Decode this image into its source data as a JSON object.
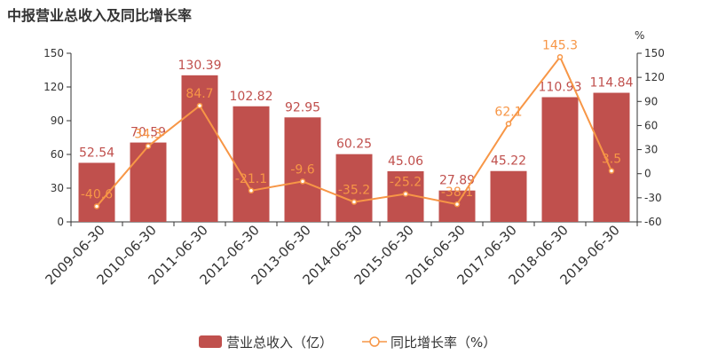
{
  "title": "中报营业总收入及同比增长率",
  "chart_data": {
    "type": "bar",
    "categories": [
      "2009-06-30",
      "2010-06-30",
      "2011-06-30",
      "2012-06-30",
      "2013-06-30",
      "2014-06-30",
      "2015-06-30",
      "2016-06-30",
      "2017-06-30",
      "2018-06-30",
      "2019-06-30"
    ],
    "series": [
      {
        "name": "营业总收入（亿）",
        "type": "bar",
        "axis": "left",
        "color": "#c0504d",
        "values": [
          52.54,
          70.59,
          130.39,
          102.82,
          92.95,
          60.25,
          45.06,
          27.89,
          45.22,
          110.93,
          114.84
        ]
      },
      {
        "name": "同比增长率（%）",
        "type": "line",
        "axis": "right",
        "color": "#f79646",
        "values": [
          -40.6,
          34.3,
          84.7,
          -21.1,
          -9.6,
          -35.2,
          -25.2,
          -38.1,
          62.1,
          145.3,
          3.5
        ]
      }
    ],
    "y_left": {
      "min": 0,
      "max": 150,
      "ticks": [
        "0",
        "30",
        "60",
        "90",
        "120",
        "150"
      ]
    },
    "y_right": {
      "min": -60,
      "max": 150,
      "unit": "%",
      "ticks": [
        "-60",
        "-30",
        "0",
        "30",
        "60",
        "90",
        "120",
        "150"
      ]
    },
    "legend_position": "bottom-center",
    "grid": false
  }
}
